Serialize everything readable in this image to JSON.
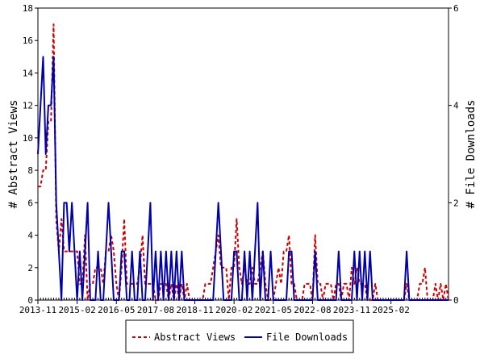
{
  "chart_data": {
    "type": "line",
    "title": "",
    "xlabel": "",
    "ylabel": "# Abstract Views",
    "y2label": "# File Downloads",
    "x_tick_labels": [
      "2013-11",
      "2015-02",
      "2016-05",
      "2017-08",
      "2018-11",
      "2020-02",
      "2021-05",
      "2022-08",
      "2023-11",
      "2025-02"
    ],
    "ylim": [
      0,
      18
    ],
    "y_ticks": [
      0,
      2,
      4,
      6,
      8,
      10,
      12,
      14,
      16,
      18
    ],
    "y2lim": [
      0,
      6
    ],
    "y2_ticks": [
      0,
      2,
      4,
      6
    ],
    "legend_position": "bottom",
    "x_start": "2013-11",
    "x_end": "2025-08",
    "series": [
      {
        "name": "Abstract Views",
        "axis": "left",
        "color": "#cc0000",
        "style": "dashed",
        "values": [
          7,
          7,
          8,
          8,
          11,
          11,
          17,
          5,
          3,
          5,
          3,
          3,
          3,
          3,
          3,
          3,
          1,
          1,
          4,
          0,
          1,
          1,
          2,
          2,
          2,
          1,
          3,
          3,
          4,
          3,
          1,
          0,
          2,
          5,
          1,
          1,
          1,
          1,
          1,
          2,
          4,
          1,
          1,
          1,
          1,
          0,
          0,
          1,
          1,
          1,
          0,
          1,
          0,
          1,
          0,
          1,
          0,
          1,
          0,
          0,
          0,
          0,
          0,
          0,
          1,
          1,
          1,
          2,
          3,
          4,
          2,
          2,
          2,
          0,
          2,
          2,
          5,
          2,
          1,
          2,
          1,
          1,
          2,
          1,
          1,
          2,
          3,
          1,
          0,
          0,
          0,
          1,
          2,
          1,
          3,
          3,
          4,
          1,
          1,
          0,
          0,
          0,
          1,
          1,
          1,
          0,
          4,
          1,
          1,
          0,
          1,
          1,
          1,
          0,
          1,
          1,
          0,
          1,
          1,
          0,
          2,
          1,
          2,
          1,
          1,
          1,
          0,
          0,
          0,
          1,
          0,
          0,
          0,
          0,
          0,
          0,
          0,
          0,
          0,
          0,
          0,
          1,
          0,
          0,
          0,
          0,
          1,
          1,
          2,
          0,
          0,
          0,
          1,
          0,
          1,
          0,
          1,
          0
        ]
      },
      {
        "name": "File Downloads",
        "axis": "right",
        "color": "#0000aa",
        "style": "solid",
        "values": [
          3,
          4,
          5,
          3,
          4,
          4,
          5,
          2,
          1,
          0,
          2,
          2,
          1,
          2,
          1,
          0,
          1,
          0,
          1,
          2,
          0,
          0,
          0,
          1,
          0,
          0,
          1,
          2,
          1,
          0,
          0,
          0,
          1,
          1,
          0,
          0,
          1,
          0,
          0,
          1,
          0,
          0,
          1,
          2,
          0,
          1,
          0,
          1,
          0,
          1,
          0,
          1,
          0,
          1,
          0,
          1,
          0,
          0,
          0,
          0,
          0,
          0,
          0,
          0,
          0,
          0,
          0,
          0,
          1,
          2,
          1,
          0,
          0,
          0,
          0,
          1,
          1,
          0,
          0,
          1,
          0,
          1,
          0,
          1,
          2,
          0,
          1,
          0,
          0,
          1,
          0,
          0,
          0,
          0,
          0,
          0,
          1,
          1,
          0,
          0,
          0,
          0,
          0,
          0,
          0,
          0,
          1,
          0,
          0,
          0,
          0,
          0,
          0,
          0,
          0,
          1,
          0,
          0,
          0,
          0,
          0,
          1,
          0,
          1,
          0,
          1,
          0,
          1,
          0,
          0,
          0,
          0,
          0,
          0,
          0,
          0,
          0,
          0,
          0,
          0,
          0,
          1,
          0,
          0,
          0,
          0,
          0,
          0,
          0,
          0,
          0,
          0,
          0,
          0,
          0,
          0,
          0,
          0
        ]
      }
    ]
  }
}
